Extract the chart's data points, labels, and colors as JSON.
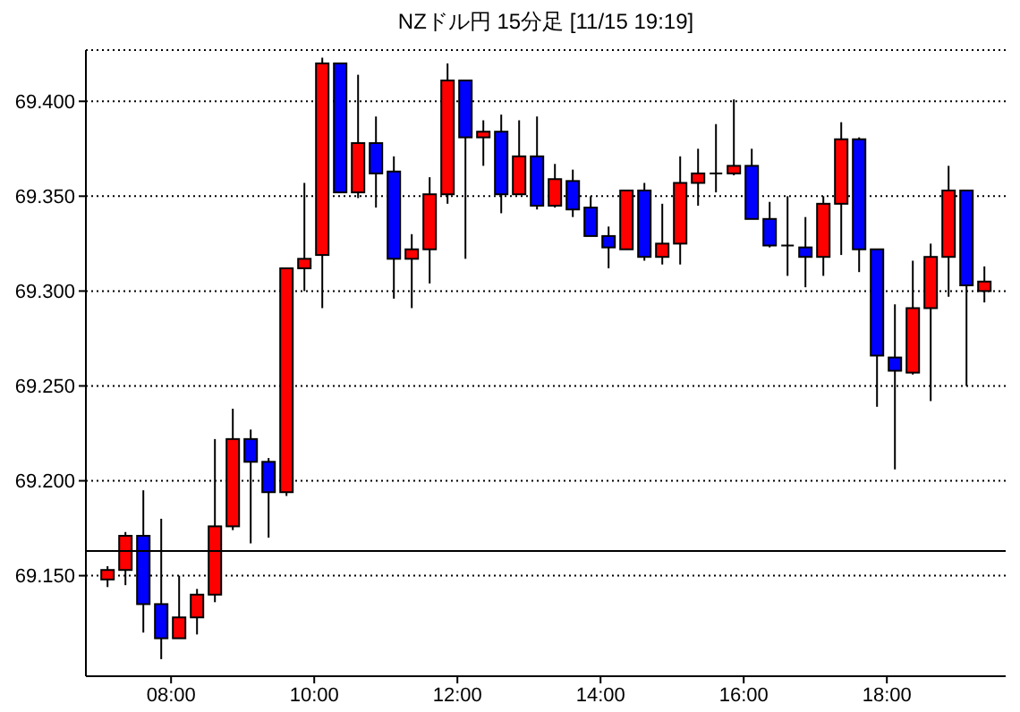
{
  "chart_data": {
    "type": "candlestick",
    "title": "NZドル円 15分足 [11/15 19:19]",
    "x": [
      7.125,
      7.375,
      7.625,
      7.875,
      8.125,
      8.375,
      8.625,
      8.875,
      9.125,
      9.375,
      9.625,
      9.875,
      10.125,
      10.375,
      10.625,
      10.875,
      11.125,
      11.375,
      11.625,
      11.875,
      12.125,
      12.375,
      12.625,
      12.875,
      13.125,
      13.375,
      13.625,
      13.875,
      14.125,
      14.375,
      14.625,
      14.875,
      15.125,
      15.375,
      15.625,
      15.875,
      16.125,
      16.375,
      16.625,
      16.875,
      17.125,
      17.375,
      17.625,
      17.875,
      18.125,
      18.375,
      18.625,
      18.875,
      19.125,
      19.375
    ],
    "ohlc": [
      [
        69.148,
        69.155,
        69.144,
        69.153
      ],
      [
        69.153,
        69.173,
        69.145,
        69.171
      ],
      [
        69.171,
        69.195,
        69.12,
        69.135
      ],
      [
        69.135,
        69.18,
        69.106,
        69.117
      ],
      [
        69.117,
        69.15,
        69.117,
        69.128
      ],
      [
        69.128,
        69.143,
        69.119,
        69.14
      ],
      [
        69.14,
        69.222,
        69.136,
        69.176
      ],
      [
        69.176,
        69.238,
        69.174,
        69.222
      ],
      [
        69.222,
        69.227,
        69.167,
        69.21
      ],
      [
        69.21,
        69.212,
        69.17,
        69.194
      ],
      [
        69.194,
        69.312,
        69.192,
        69.312
      ],
      [
        69.312,
        69.357,
        69.3,
        69.317
      ],
      [
        69.319,
        69.423,
        69.291,
        69.42
      ],
      [
        69.42,
        69.42,
        69.352,
        69.352
      ],
      [
        69.352,
        69.414,
        69.349,
        69.378
      ],
      [
        69.378,
        69.392,
        69.344,
        69.362
      ],
      [
        69.363,
        69.371,
        69.296,
        69.317
      ],
      [
        69.317,
        69.33,
        69.291,
        69.322
      ],
      [
        69.322,
        69.36,
        69.304,
        69.351
      ],
      [
        69.351,
        69.42,
        69.346,
        69.411
      ],
      [
        69.411,
        69.411,
        69.317,
        69.381
      ],
      [
        69.381,
        69.39,
        69.366,
        69.384
      ],
      [
        69.384,
        69.393,
        69.341,
        69.351
      ],
      [
        69.351,
        69.39,
        69.351,
        69.371
      ],
      [
        69.371,
        69.392,
        69.343,
        69.345
      ],
      [
        69.345,
        69.367,
        69.344,
        69.359
      ],
      [
        69.358,
        69.364,
        69.339,
        69.343
      ],
      [
        69.344,
        69.35,
        69.329,
        69.329
      ],
      [
        69.329,
        69.334,
        69.312,
        69.323
      ],
      [
        69.322,
        69.353,
        69.322,
        69.353
      ],
      [
        69.353,
        69.357,
        69.316,
        69.318
      ],
      [
        69.318,
        69.346,
        69.314,
        69.325
      ],
      [
        69.325,
        69.371,
        69.314,
        69.357
      ],
      [
        69.357,
        69.375,
        69.345,
        69.362
      ],
      [
        69.362,
        69.388,
        69.352,
        69.362
      ],
      [
        69.362,
        69.401,
        69.361,
        69.366
      ],
      [
        69.366,
        69.375,
        69.338,
        69.338
      ],
      [
        69.338,
        69.347,
        69.323,
        69.324
      ],
      [
        69.324,
        69.35,
        69.308,
        69.324
      ],
      [
        69.323,
        69.339,
        69.302,
        69.318
      ],
      [
        69.318,
        69.35,
        69.308,
        69.346
      ],
      [
        69.346,
        69.389,
        69.319,
        69.38
      ],
      [
        69.38,
        69.381,
        69.31,
        69.322
      ],
      [
        69.322,
        69.322,
        69.239,
        69.266
      ],
      [
        69.265,
        69.293,
        69.206,
        69.258
      ],
      [
        69.257,
        69.316,
        69.256,
        69.291
      ],
      [
        69.291,
        69.325,
        69.242,
        69.318
      ],
      [
        69.318,
        69.366,
        69.297,
        69.353
      ],
      [
        69.353,
        69.353,
        69.25,
        69.303
      ],
      [
        69.3,
        69.313,
        69.294,
        69.305
      ]
    ],
    "colors": [
      "#ff0000",
      "#ff0000",
      "#0000ff",
      "#0000ff",
      "#ff0000",
      "#ff0000",
      "#ff0000",
      "#ff0000",
      "#0000ff",
      "#0000ff",
      "#ff0000",
      "#ff0000",
      "#ff0000",
      "#0000ff",
      "#ff0000",
      "#0000ff",
      "#0000ff",
      "#ff0000",
      "#ff0000",
      "#ff0000",
      "#0000ff",
      "#ff0000",
      "#0000ff",
      "#ff0000",
      "#0000ff",
      "#ff0000",
      "#0000ff",
      "#0000ff",
      "#0000ff",
      "#ff0000",
      "#0000ff",
      "#ff0000",
      "#ff0000",
      "#ff0000",
      "#000000",
      "#ff0000",
      "#0000ff",
      "#0000ff",
      "#000000",
      "#0000ff",
      "#ff0000",
      "#ff0000",
      "#0000ff",
      "#0000ff",
      "#0000ff",
      "#ff0000",
      "#ff0000",
      "#ff0000",
      "#0000ff",
      "#ff0000"
    ],
    "xlim": [
      6.81,
      19.66
    ],
    "xticks": [
      {
        "value": 8,
        "label": "08:00"
      },
      {
        "value": 10,
        "label": "10:00"
      },
      {
        "value": 12,
        "label": "12:00"
      },
      {
        "value": 14,
        "label": "14:00"
      },
      {
        "value": 16,
        "label": "16:00"
      },
      {
        "value": 18,
        "label": "18:00"
      }
    ],
    "ylim": [
      69.097,
      69.427
    ],
    "yticks": [
      {
        "value": 69.15,
        "label": "69.150"
      },
      {
        "value": 69.2,
        "label": "69.200"
      },
      {
        "value": 69.25,
        "label": "69.250"
      },
      {
        "value": 69.3,
        "label": "69.300"
      },
      {
        "value": 69.35,
        "label": "69.350"
      },
      {
        "value": 69.4,
        "label": "69.400"
      }
    ],
    "grid": "y",
    "ref_lines": [
      {
        "axis": "y",
        "value": 69.163,
        "color": "#000000"
      }
    ]
  }
}
